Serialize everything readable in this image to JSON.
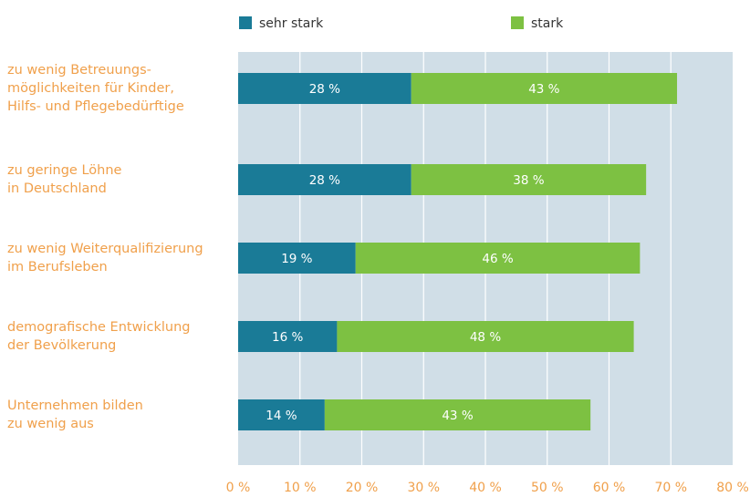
{
  "chart_data": {
    "type": "stacked_barh",
    "categories": [
      [
        "zu wenig Betreuungs-",
        "möglichkeiten für Kinder,",
        "Hilfs- und Pflegebedürftige"
      ],
      [
        "zu geringe Löhne",
        "in Deutschland"
      ],
      [
        "zu wenig Weiterqualifizierung",
        "im Berufsleben"
      ],
      [
        "demografische Entwicklung",
        "der Bevölkerung"
      ],
      [
        "Unternehmen bilden",
        "zu wenig aus"
      ]
    ],
    "series": [
      {
        "name": "sehr stark",
        "color": "#1a7b97",
        "values": [
          28,
          28,
          19,
          16,
          14
        ],
        "value_labels": [
          "28 %",
          "28 %",
          "19 %",
          "16 %",
          "14 %"
        ]
      },
      {
        "name": "stark",
        "color": "#7dc142",
        "values": [
          43,
          38,
          46,
          48,
          43
        ],
        "value_labels": [
          "43 %",
          "38 %",
          "46 %",
          "48 %",
          "43 %"
        ]
      }
    ],
    "xlim": [
      0,
      80
    ],
    "xticks": [
      {
        "value": 0,
        "label": "0 %"
      },
      {
        "value": 10,
        "label": "10 %"
      },
      {
        "value": 20,
        "label": "20 %"
      },
      {
        "value": 30,
        "label": "30 %"
      },
      {
        "value": 40,
        "label": "40 %"
      },
      {
        "value": 50,
        "label": "50 %"
      },
      {
        "value": 60,
        "label": "60 %"
      },
      {
        "value": 70,
        "label": "70 %"
      },
      {
        "value": 80,
        "label": "80 %"
      }
    ],
    "grid": true
  }
}
